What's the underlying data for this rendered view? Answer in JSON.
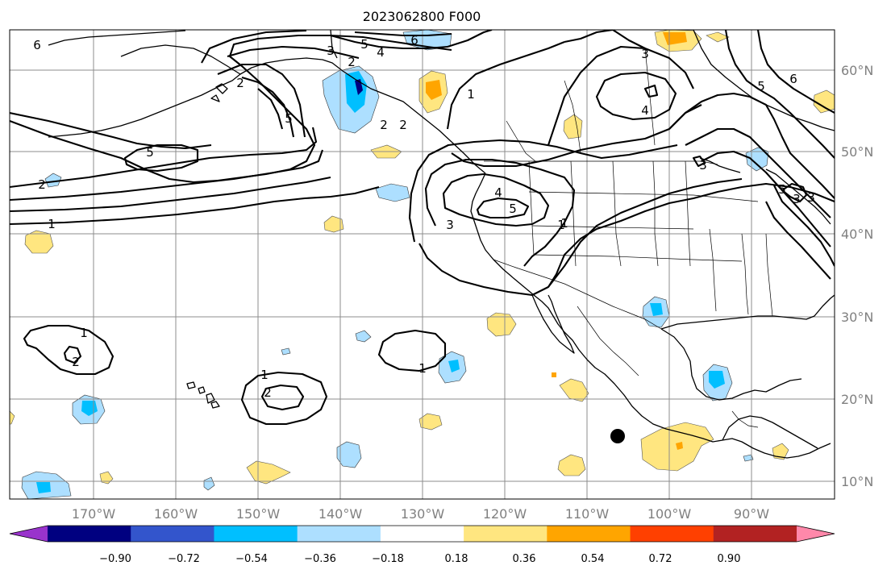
{
  "title": "2023062800 F000",
  "map": {
    "lon_range_deg": [
      -180,
      -80
    ],
    "lat_range_deg": [
      8,
      65
    ],
    "lon_labels": [
      "170°W",
      "160°W",
      "150°W",
      "140°W",
      "130°W",
      "120°W",
      "110°W",
      "100°W",
      "90°W"
    ],
    "lat_labels": [
      "60°N",
      "50°N",
      "40°N",
      "30°N",
      "20°N",
      "10°N"
    ],
    "gridlines": true,
    "contour_labels": [
      "6",
      "5",
      "4",
      "3",
      "2",
      "1",
      "2",
      "5",
      "5",
      "2",
      "1",
      "2",
      "1",
      "2",
      "5",
      "3",
      "6",
      "1",
      "3",
      "4",
      "6",
      "5",
      "3",
      "4",
      "5",
      "3",
      "1",
      "2",
      "1",
      "2",
      "1",
      "3"
    ],
    "marker": {
      "name": "black dot",
      "lon": -106.5,
      "lat": 15.5
    }
  },
  "colorbar": {
    "tick_labels": [
      "−0.90",
      "−0.72",
      "−0.54",
      "−0.36",
      "−0.18",
      "0.18",
      "0.36",
      "0.54",
      "0.72",
      "0.90"
    ],
    "colors": [
      "#9933cc",
      "#000080",
      "#3355cc",
      "#00bfff",
      "#addfff",
      "#ffffff",
      "#ffe680",
      "#ffa500",
      "#ff4000",
      "#b22222",
      "#ff88aa"
    ],
    "extend": "both"
  }
}
